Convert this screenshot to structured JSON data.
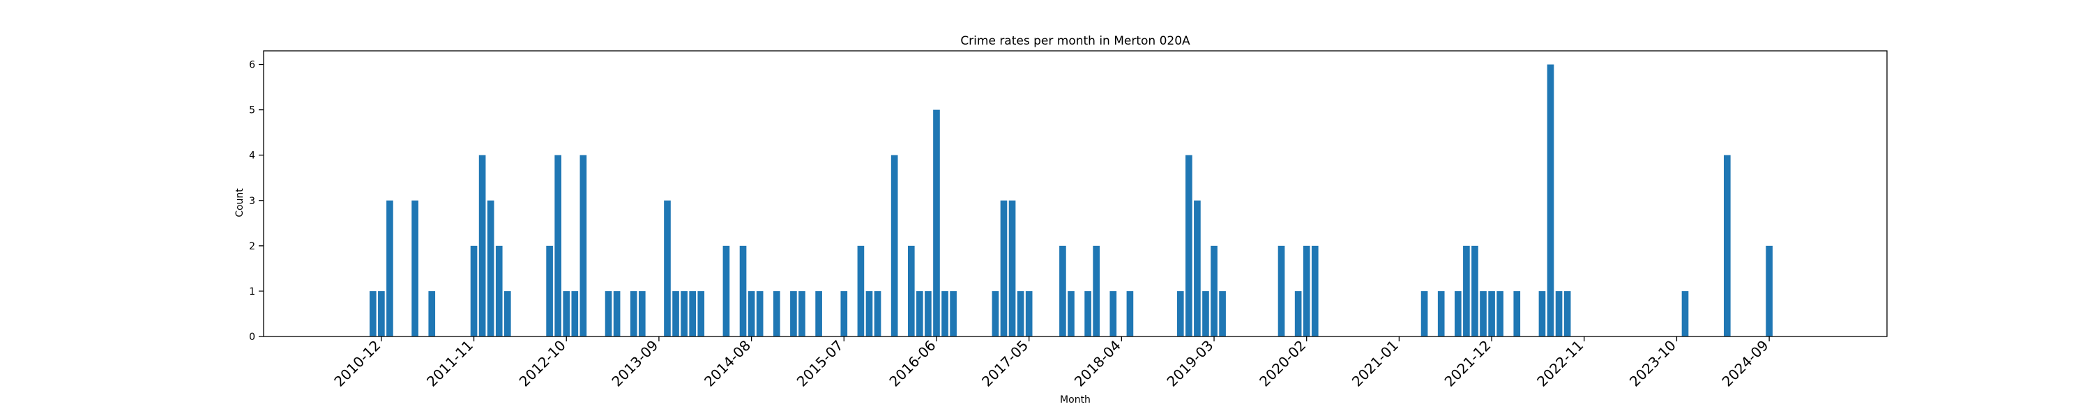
{
  "chart_data": {
    "type": "bar",
    "title": "Crime rates per month in Merton 020A",
    "xlabel": "Month",
    "ylabel": "Count",
    "ylim": [
      0,
      6.3
    ],
    "y_ticks": [
      0,
      1,
      2,
      3,
      4,
      5,
      6
    ],
    "x_range": [
      "2009-10",
      "2025-11"
    ],
    "x_ticks": [
      "2010-12",
      "2011-11",
      "2012-10",
      "2013-09",
      "2014-08",
      "2015-07",
      "2016-06",
      "2017-05",
      "2018-04",
      "2019-03",
      "2020-02",
      "2021-01",
      "2021-12",
      "2022-11",
      "2023-10",
      "2024-09"
    ],
    "grid": false,
    "bar_color": "#1f77b4",
    "series": [
      {
        "data": [
          {
            "x": "2010-11",
            "y": 1
          },
          {
            "x": "2010-12",
            "y": 1
          },
          {
            "x": "2011-01",
            "y": 3
          },
          {
            "x": "2011-04",
            "y": 3
          },
          {
            "x": "2011-06",
            "y": 1
          },
          {
            "x": "2011-11",
            "y": 2
          },
          {
            "x": "2011-12",
            "y": 4
          },
          {
            "x": "2012-01",
            "y": 3
          },
          {
            "x": "2012-02",
            "y": 2
          },
          {
            "x": "2012-03",
            "y": 1
          },
          {
            "x": "2012-08",
            "y": 2
          },
          {
            "x": "2012-09",
            "y": 4
          },
          {
            "x": "2012-10",
            "y": 1
          },
          {
            "x": "2012-11",
            "y": 1
          },
          {
            "x": "2012-12",
            "y": 4
          },
          {
            "x": "2013-03",
            "y": 1
          },
          {
            "x": "2013-04",
            "y": 1
          },
          {
            "x": "2013-06",
            "y": 1
          },
          {
            "x": "2013-07",
            "y": 1
          },
          {
            "x": "2013-10",
            "y": 3
          },
          {
            "x": "2013-11",
            "y": 1
          },
          {
            "x": "2013-12",
            "y": 1
          },
          {
            "x": "2014-01",
            "y": 1
          },
          {
            "x": "2014-02",
            "y": 1
          },
          {
            "x": "2014-05",
            "y": 2
          },
          {
            "x": "2014-07",
            "y": 2
          },
          {
            "x": "2014-08",
            "y": 1
          },
          {
            "x": "2014-09",
            "y": 1
          },
          {
            "x": "2014-11",
            "y": 1
          },
          {
            "x": "2015-01",
            "y": 1
          },
          {
            "x": "2015-02",
            "y": 1
          },
          {
            "x": "2015-04",
            "y": 1
          },
          {
            "x": "2015-07",
            "y": 1
          },
          {
            "x": "2015-09",
            "y": 2
          },
          {
            "x": "2015-10",
            "y": 1
          },
          {
            "x": "2015-11",
            "y": 1
          },
          {
            "x": "2016-01",
            "y": 4
          },
          {
            "x": "2016-03",
            "y": 2
          },
          {
            "x": "2016-04",
            "y": 1
          },
          {
            "x": "2016-05",
            "y": 1
          },
          {
            "x": "2016-06",
            "y": 5
          },
          {
            "x": "2016-07",
            "y": 1
          },
          {
            "x": "2016-08",
            "y": 1
          },
          {
            "x": "2017-01",
            "y": 1
          },
          {
            "x": "2017-02",
            "y": 3
          },
          {
            "x": "2017-03",
            "y": 3
          },
          {
            "x": "2017-04",
            "y": 1
          },
          {
            "x": "2017-05",
            "y": 1
          },
          {
            "x": "2017-09",
            "y": 2
          },
          {
            "x": "2017-10",
            "y": 1
          },
          {
            "x": "2017-12",
            "y": 1
          },
          {
            "x": "2018-01",
            "y": 2
          },
          {
            "x": "2018-03",
            "y": 1
          },
          {
            "x": "2018-05",
            "y": 1
          },
          {
            "x": "2018-11",
            "y": 1
          },
          {
            "x": "2018-12",
            "y": 4
          },
          {
            "x": "2019-01",
            "y": 3
          },
          {
            "x": "2019-02",
            "y": 1
          },
          {
            "x": "2019-03",
            "y": 2
          },
          {
            "x": "2019-04",
            "y": 1
          },
          {
            "x": "2019-11",
            "y": 2
          },
          {
            "x": "2020-01",
            "y": 1
          },
          {
            "x": "2020-02",
            "y": 2
          },
          {
            "x": "2020-03",
            "y": 2
          },
          {
            "x": "2021-04",
            "y": 1
          },
          {
            "x": "2021-06",
            "y": 1
          },
          {
            "x": "2021-08",
            "y": 1
          },
          {
            "x": "2021-09",
            "y": 2
          },
          {
            "x": "2021-10",
            "y": 2
          },
          {
            "x": "2021-11",
            "y": 1
          },
          {
            "x": "2021-12",
            "y": 1
          },
          {
            "x": "2022-01",
            "y": 1
          },
          {
            "x": "2022-03",
            "y": 1
          },
          {
            "x": "2022-06",
            "y": 1
          },
          {
            "x": "2022-07",
            "y": 6
          },
          {
            "x": "2022-08",
            "y": 1
          },
          {
            "x": "2022-09",
            "y": 1
          },
          {
            "x": "2023-11",
            "y": 1
          },
          {
            "x": "2024-04",
            "y": 4
          },
          {
            "x": "2024-09",
            "y": 2
          }
        ]
      }
    ]
  }
}
